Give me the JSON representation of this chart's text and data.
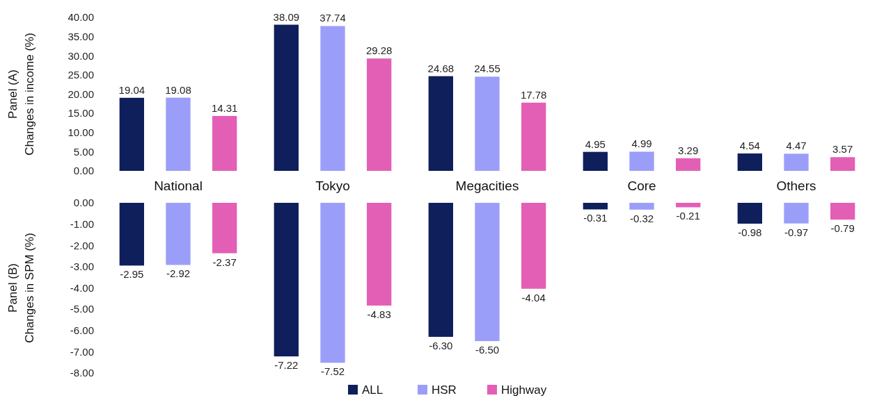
{
  "chart_data": [
    {
      "type": "bar",
      "ylabel": "Panel (A)\nChanges in income (%)",
      "categories": [
        "National",
        "Tokyo",
        "Megacities",
        "Core",
        "Others"
      ],
      "ylim": [
        0,
        40
      ],
      "yticks": [
        {
          "value": 0,
          "label": "0.00"
        },
        {
          "value": 5,
          "label": "5.00"
        },
        {
          "value": 10,
          "label": "10.00"
        },
        {
          "value": 15,
          "label": "15.00"
        },
        {
          "value": 20,
          "label": "20.00"
        },
        {
          "value": 25,
          "label": "25.00"
        },
        {
          "value": 30,
          "label": "30.00"
        },
        {
          "value": 35,
          "label": "35.00"
        },
        {
          "value": 40,
          "label": "40.00"
        }
      ],
      "grid": false,
      "legend": false,
      "series": [
        {
          "color": "#0f1f5c",
          "values": [
            19.04,
            38.09,
            24.68,
            4.95,
            4.54
          ],
          "value_labels": [
            "19.04",
            "38.09",
            "24.68",
            "4.95",
            "4.54"
          ]
        },
        {
          "color": "#9b9ef8",
          "values": [
            19.08,
            37.74,
            24.55,
            4.99,
            4.47
          ],
          "value_labels": [
            "19.08",
            "37.74",
            "24.55",
            "4.99",
            "4.47"
          ]
        },
        {
          "color": "#e35fb5",
          "values": [
            14.31,
            29.28,
            17.78,
            3.29,
            3.57
          ],
          "value_labels": [
            "14.31",
            "29.28",
            "17.78",
            "3.29",
            "3.57"
          ]
        }
      ]
    },
    {
      "type": "bar",
      "ylabel": "Panel (B)\nChanges  in SPM (%)",
      "categories": [
        null,
        null,
        null,
        null,
        null
      ],
      "tick_labels": "y",
      "ylim": [
        -8,
        0
      ],
      "yticks": [
        {
          "value": 0,
          "label": "0.00"
        },
        {
          "value": -1,
          "label": "-1.00"
        },
        {
          "value": -2,
          "label": "-2.00"
        },
        {
          "value": -3,
          "label": "-3.00"
        },
        {
          "value": -4,
          "label": "-4.00"
        },
        {
          "value": -5,
          "label": "-5.00"
        },
        {
          "value": -6,
          "label": "-6.00"
        },
        {
          "value": -7,
          "label": "-7.00"
        },
        {
          "value": -8,
          "label": "-8.00"
        }
      ],
      "grid": false,
      "legend": "bottom",
      "series": [
        {
          "name": "ALL",
          "color": "#0f1f5c",
          "values": [
            -2.95,
            -7.22,
            -6.3,
            -0.31,
            -0.98
          ],
          "value_labels": [
            "-2.95",
            "-7.22",
            "-6.30",
            "-0.31",
            "-0.98"
          ]
        },
        {
          "name": "HSR",
          "color": "#9b9ef8",
          "values": [
            -2.92,
            -7.52,
            -6.5,
            -0.32,
            -0.97
          ],
          "value_labels": [
            "-2.92",
            "-7.52",
            "-6.50",
            "-0.32",
            "-0.97"
          ]
        },
        {
          "name": "Highway",
          "color": "#e35fb5",
          "values": [
            -2.37,
            -4.83,
            -4.04,
            -0.21,
            -0.79
          ],
          "value_labels": [
            "-2.37",
            "-4.83",
            "-4.04",
            "-0.21",
            "-0.79"
          ]
        }
      ]
    }
  ]
}
